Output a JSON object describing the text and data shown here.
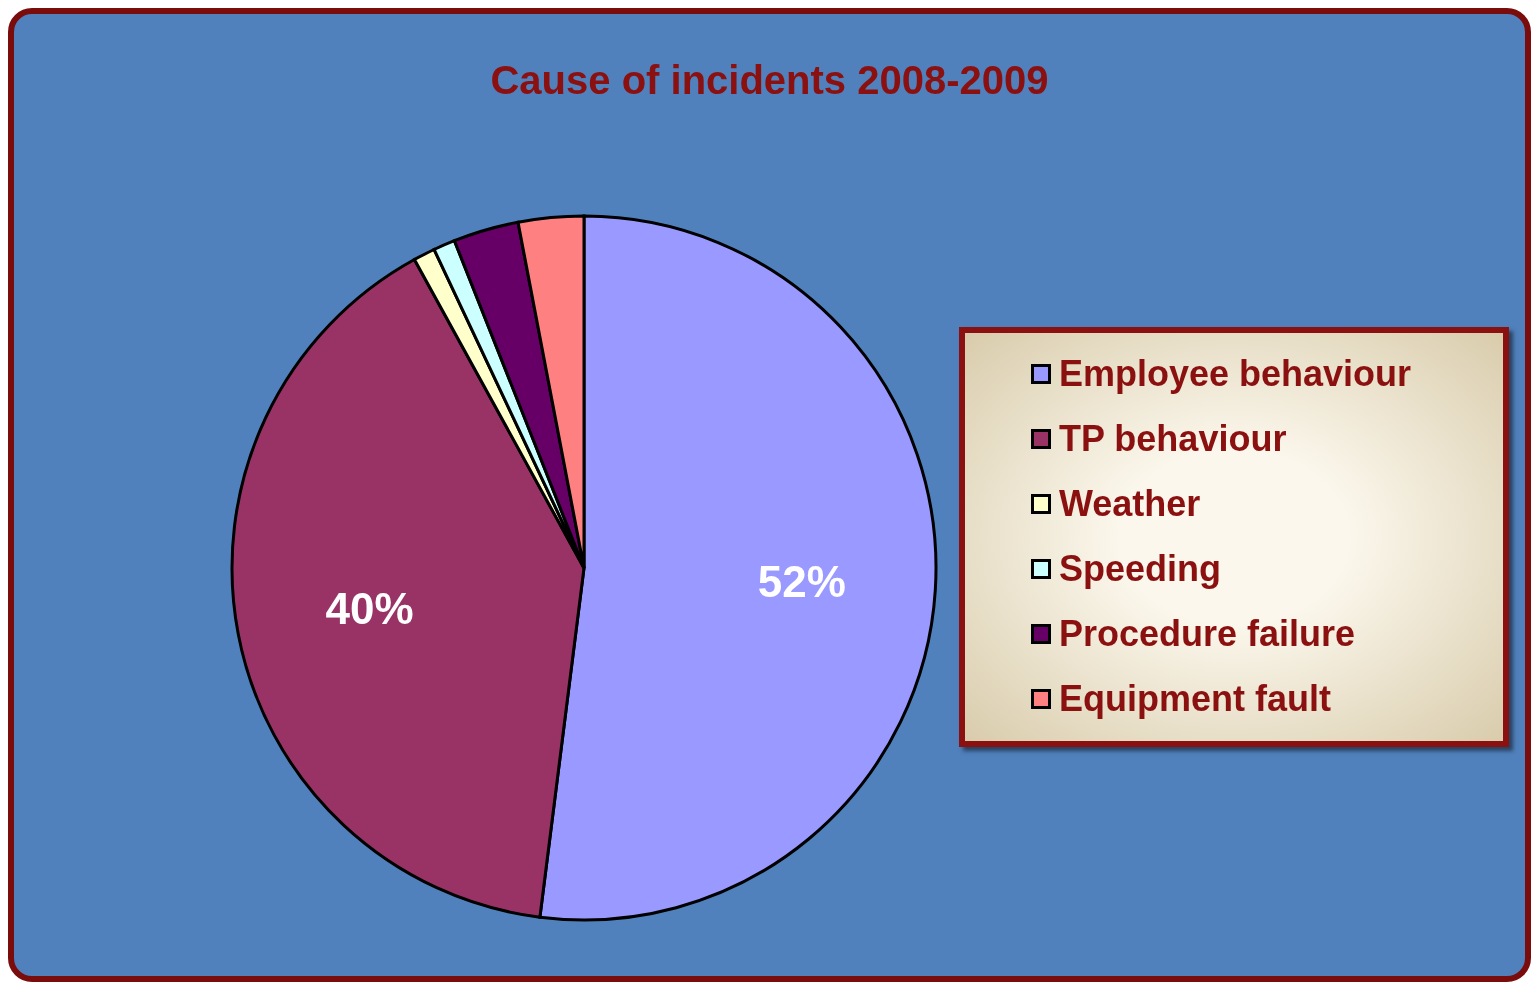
{
  "chart_data": {
    "type": "pie",
    "title": "Cause of incidents 2008-2009",
    "categories": [
      "Employee behaviour",
      "TP behaviour",
      "Weather",
      "Speeding",
      "Procedure failure",
      "Equipment fault"
    ],
    "values": [
      52,
      40,
      1,
      1,
      3,
      3
    ],
    "value_labels": [
      "52%",
      "40%",
      null,
      null,
      null,
      null
    ],
    "colors": [
      "#9999ff",
      "#993366",
      "#ffffcc",
      "#ccffff",
      "#660066",
      "#ff8080"
    ],
    "legend": "right"
  }
}
